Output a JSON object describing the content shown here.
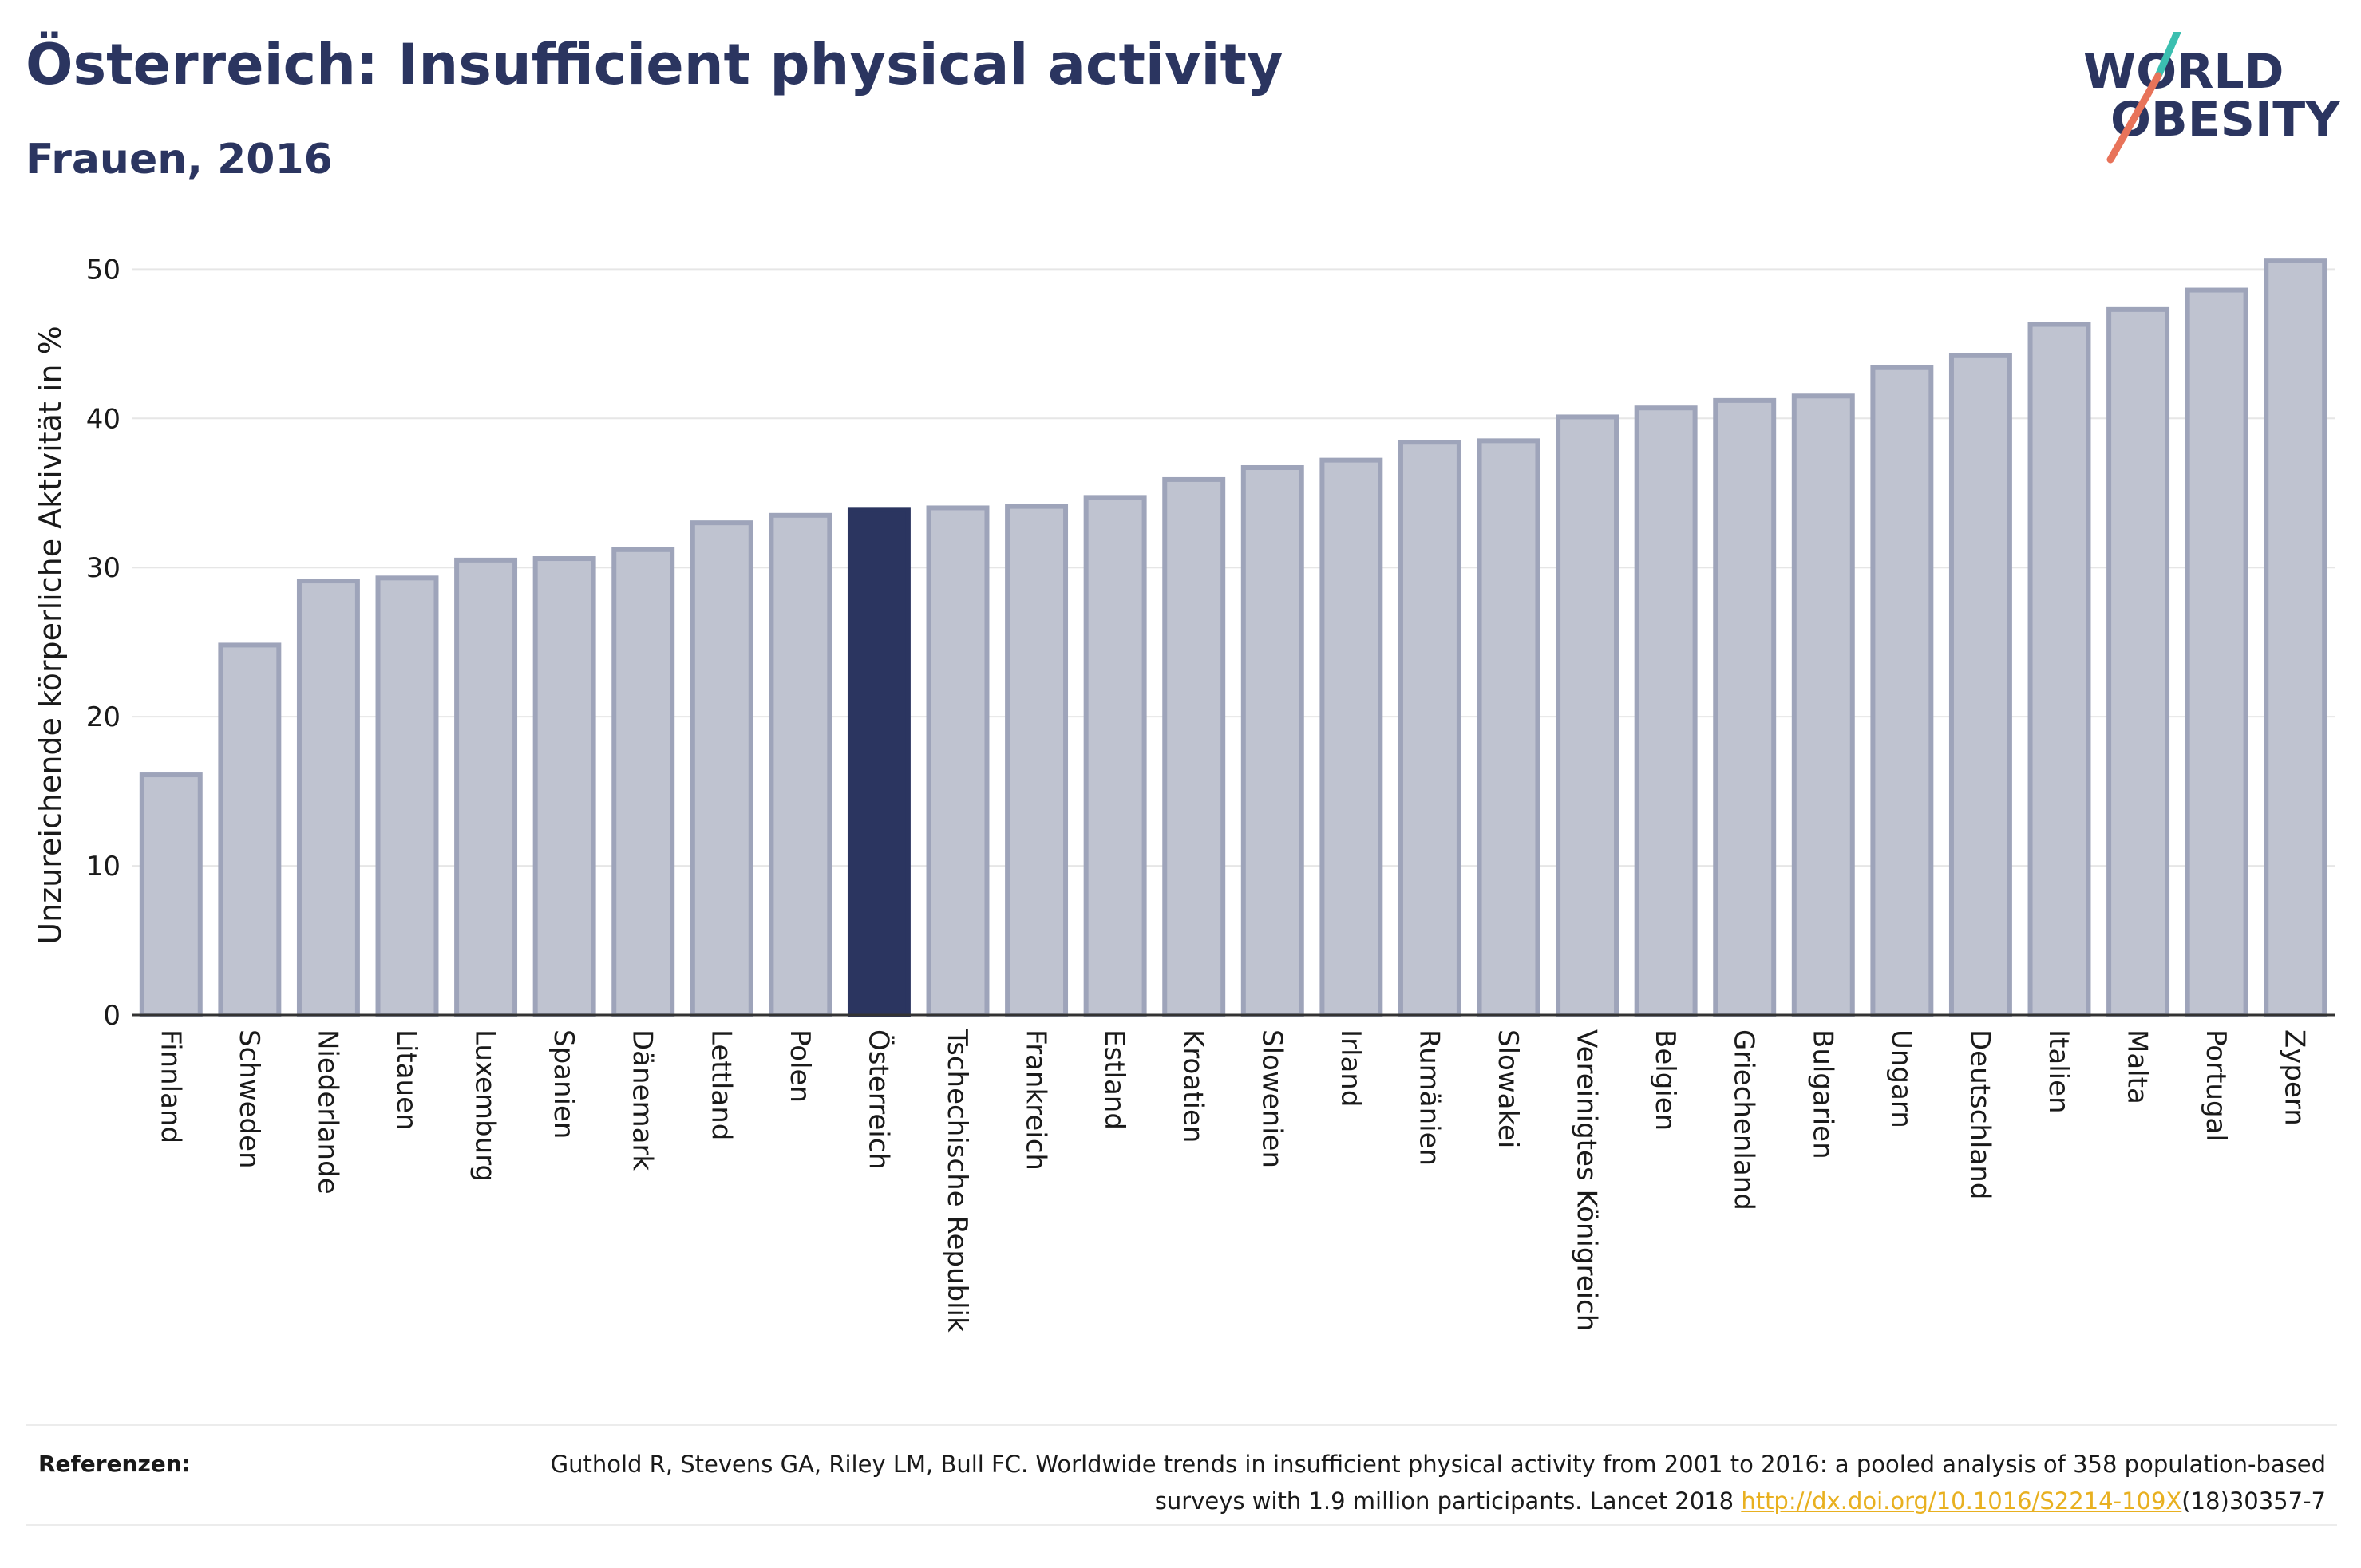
{
  "header": {
    "title": "Österreich: Insufficient physical activity",
    "subtitle": "Frauen, 2016"
  },
  "logo": {
    "line1": "WORLD",
    "line2": "OBESITY",
    "colors": {
      "text": "#2b3560",
      "slash_top": "#3bbfb0",
      "slash_bottom": "#e8735a"
    }
  },
  "colors": {
    "bar_fill": "#bfc3d0",
    "bar_stroke": "#9ea4ba",
    "highlight_fill": "#2b3560",
    "grid": "#e6e6e6",
    "axis": "#333333"
  },
  "chart_data": {
    "type": "bar",
    "title": "Österreich: Insufficient physical activity",
    "subtitle": "Frauen, 2016",
    "xlabel": "",
    "ylabel": "Unzureichende körperliche Aktivität in %",
    "ylim": [
      0,
      52
    ],
    "yticks": [
      0,
      10,
      20,
      30,
      40,
      50
    ],
    "highlight": "Österreich",
    "grid": true,
    "categories": [
      "Finnland",
      "Schweden",
      "Niederlande",
      "Litauen",
      "Luxemburg",
      "Spanien",
      "Dänemark",
      "Lettland",
      "Polen",
      "Österreich",
      "Tschechische Republik",
      "Frankreich",
      "Estland",
      "Kroatien",
      "Slowenien",
      "Irland",
      "Rumänien",
      "Slowakei",
      "Vereinigtes Königreich",
      "Belgien",
      "Griechenland",
      "Bulgarien",
      "Ungarn",
      "Deutschland",
      "Italien",
      "Malta",
      "Portugal",
      "Zypern"
    ],
    "values": [
      16.1,
      24.8,
      29.1,
      29.3,
      30.5,
      30.6,
      31.2,
      33.0,
      33.5,
      33.9,
      34.0,
      34.1,
      34.7,
      35.9,
      36.7,
      37.2,
      38.4,
      38.5,
      40.1,
      40.7,
      41.2,
      41.5,
      43.4,
      44.2,
      46.3,
      47.3,
      48.6,
      50.6
    ]
  },
  "references": {
    "label": "Referenzen:",
    "text_before_link": "Guthold R, Stevens GA, Riley LM, Bull FC. Worldwide trends in insufficient physical activity from 2001 to 2016: a pooled analysis of 358 population-based surveys with 1.9 million participants. Lancet 2018 ",
    "link": "http://dx.doi.org/10.1016/S2214-109X",
    "text_after_link": "(18)30357-7"
  }
}
